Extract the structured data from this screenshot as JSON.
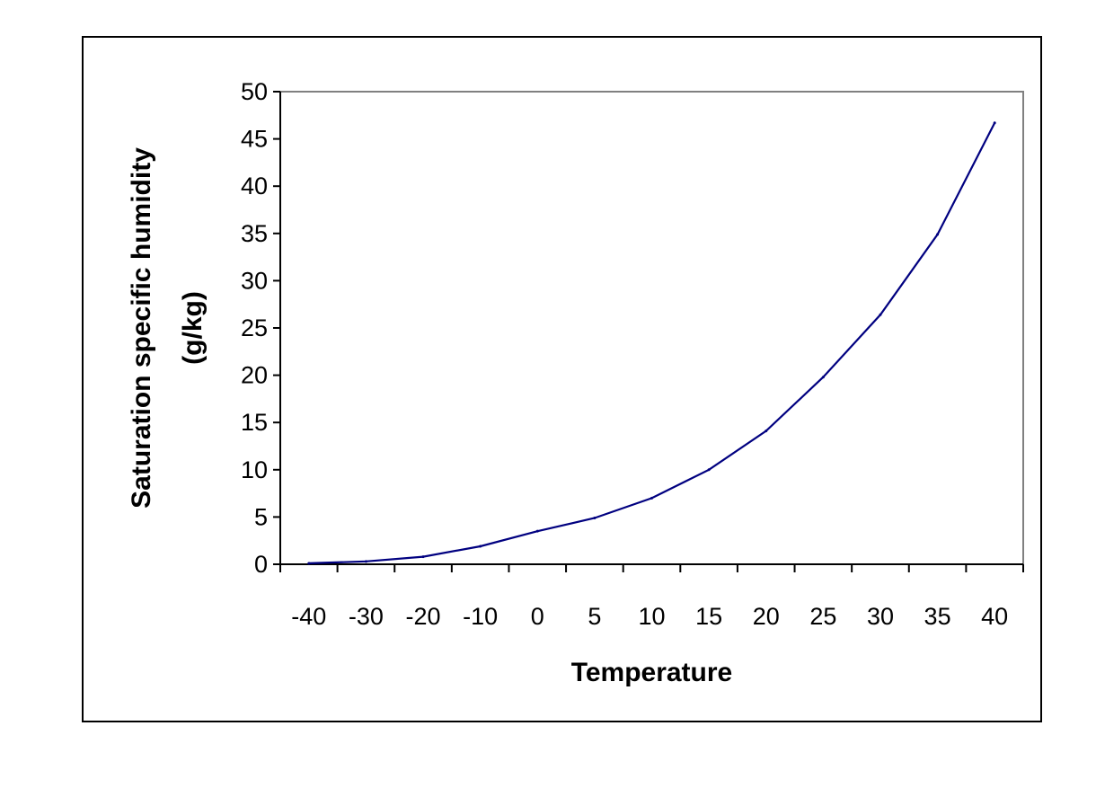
{
  "chart_data": {
    "type": "line",
    "xlabel": "Temperature",
    "ylabel_line1": "Saturation specific humidity",
    "ylabel_line2": "(g/kg)",
    "categories": [
      "-40",
      "-30",
      "-20",
      "-10",
      "0",
      "5",
      "10",
      "15",
      "20",
      "25",
      "30",
      "35",
      "40"
    ],
    "series": [
      {
        "values": [
          0.1,
          0.3,
          0.8,
          1.9,
          3.5,
          4.9,
          7.0,
          10.0,
          14.1,
          19.8,
          26.4,
          34.9,
          46.7
        ]
      }
    ],
    "ylim": [
      0,
      50
    ],
    "yticks": [
      0,
      5,
      10,
      15,
      20,
      25,
      30,
      35,
      40,
      45,
      50
    ],
    "grid": false,
    "colors": {
      "line": "#000080",
      "plot_border": "#808080",
      "axis": "#000000"
    }
  }
}
